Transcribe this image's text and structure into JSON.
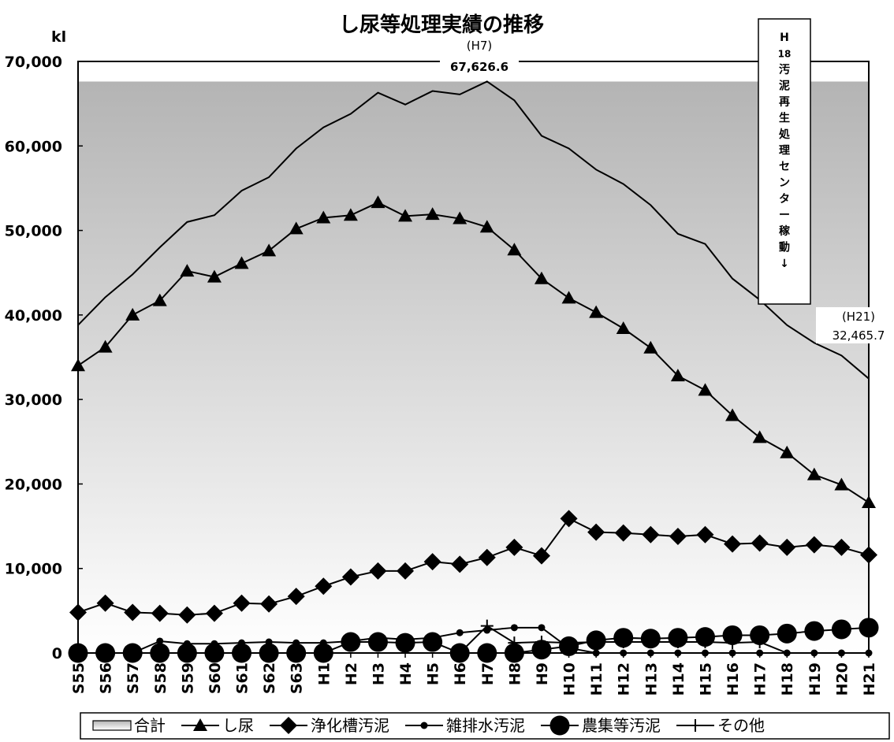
{
  "chart_data": {
    "type": "line",
    "title": "し尿等処理実績の推移",
    "ylabel": "kl",
    "ylim": [
      0,
      70000
    ],
    "y_ticks": [
      "0",
      "10,000",
      "20,000",
      "30,000",
      "40,000",
      "50,000",
      "60,000",
      "70,000"
    ],
    "categories": [
      "S55",
      "S56",
      "S57",
      "S58",
      "S59",
      "S60",
      "S61",
      "S62",
      "S63",
      "H1",
      "H2",
      "H3",
      "H4",
      "H5",
      "H6",
      "H7",
      "H8",
      "H9",
      "H10",
      "H11",
      "H12",
      "H13",
      "H14",
      "H15",
      "H16",
      "H17",
      "H18",
      "H19",
      "H20",
      "H21"
    ],
    "series": [
      {
        "name": "合計",
        "marker": "area",
        "values": [
          38800,
          42100,
          44800,
          48000,
          51000,
          51800,
          54700,
          56300,
          59700,
          62200,
          63800,
          66300,
          64900,
          66500,
          66100,
          67626.6,
          65400,
          61200,
          59700,
          57200,
          55500,
          53000,
          49600,
          48400,
          44300,
          41800,
          38800,
          36700,
          35200,
          32465.7
        ]
      },
      {
        "name": "し尿",
        "marker": "triangle",
        "values": [
          34000,
          36200,
          40000,
          41700,
          45200,
          44500,
          46100,
          47600,
          50200,
          51500,
          51800,
          53300,
          51700,
          51900,
          51400,
          50400,
          47700,
          44300,
          42000,
          40300,
          38400,
          36100,
          32800,
          31100,
          28100,
          25500,
          23700,
          21100,
          19900,
          17800
        ]
      },
      {
        "name": "浄化槽汚泥",
        "marker": "diamond",
        "values": [
          4800,
          5900,
          4800,
          4700,
          4500,
          4700,
          5900,
          5800,
          6700,
          7900,
          9000,
          9700,
          9700,
          10800,
          10500,
          11300,
          12500,
          11500,
          15900,
          14300,
          14200,
          14000,
          13800,
          14000,
          12900,
          13000,
          12500,
          12800,
          12500,
          11600
        ]
      },
      {
        "name": "雑排水汚泥",
        "marker": "small-circle",
        "values": [
          0,
          0,
          0,
          1400,
          1100,
          1100,
          1200,
          1300,
          1200,
          1200,
          1400,
          1800,
          1600,
          1800,
          2400,
          2700,
          3000,
          3000,
          600,
          0,
          0,
          0,
          0,
          0,
          0,
          0,
          0,
          0,
          0,
          0
        ]
      },
      {
        "name": "農集等汚泥",
        "marker": "large-circle",
        "values": [
          0,
          0,
          0,
          0,
          0,
          0,
          0,
          0,
          0,
          0,
          1300,
          1300,
          1200,
          1300,
          0,
          0,
          0,
          400,
          800,
          1500,
          1800,
          1700,
          1800,
          1900,
          2100,
          2100,
          2300,
          2600,
          2800,
          3000
        ]
      },
      {
        "name": "その他",
        "marker": "plus",
        "values": [
          0,
          0,
          0,
          0,
          0,
          0,
          0,
          0,
          0,
          0,
          0,
          0,
          0,
          0,
          0,
          3200,
          1200,
          1300,
          1200,
          1300,
          1300,
          1300,
          1300,
          1300,
          1200,
          1300,
          0,
          0,
          0,
          0
        ]
      }
    ],
    "annotations": {
      "peak_label": "(H7)",
      "peak_value": "67,626.6",
      "end_label": "(H21)",
      "end_value": "32,465.7",
      "event_box": [
        "H",
        "18",
        "汚",
        "泥",
        "再",
        "生",
        "処",
        "理",
        "セ",
        "ン",
        "タ",
        "ー",
        "稼",
        "動",
        "↓"
      ]
    },
    "grid": false,
    "legend_position": "bottom"
  }
}
